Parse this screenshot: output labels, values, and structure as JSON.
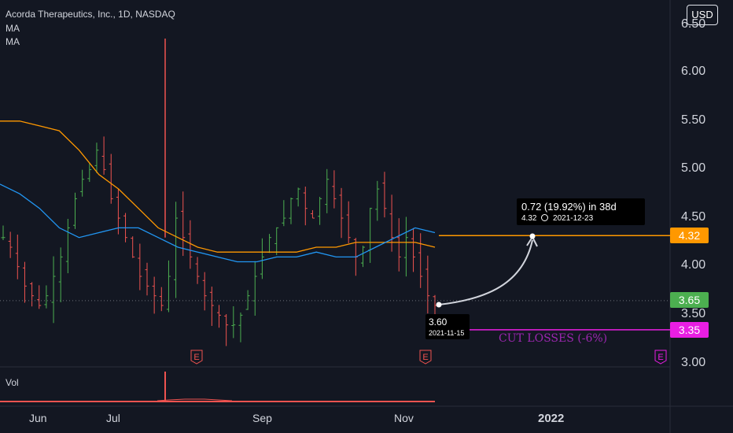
{
  "header": {
    "symbol_title": "Acorda Therapeutics, Inc., 1D, NASDAQ",
    "indicator_1": "MA",
    "indicator_2": "MA",
    "currency_button": "USD"
  },
  "volume_label": "Vol",
  "price_axis": {
    "ticks": [
      "6.50",
      "6.00",
      "5.50",
      "5.00",
      "4.50",
      "4.00",
      "3.50",
      "3.00"
    ]
  },
  "price_tags": {
    "target": "4.32",
    "current": "3.65",
    "stop": "3.35"
  },
  "colors": {
    "background": "#131722",
    "target": "#ff9800",
    "current": "#4caf50",
    "stop": "#e91ee3",
    "ma_fast": "#2196f3",
    "ma_slow": "#ff9800",
    "up_candle": "#4caf50",
    "down_candle": "#ef5350"
  },
  "time_axis": {
    "ticks": [
      "Jun",
      "Jul",
      "Sep",
      "Nov",
      "2022"
    ]
  },
  "annotations": {
    "projection_main": "0.72 (19.92%) in 38d",
    "projection_price": "4.32",
    "projection_date": "2021-12-23",
    "entry_price": "3.60",
    "entry_date": "2021-11-15",
    "cut_losses": "CUT LOSSES (-6%)"
  },
  "earnings_markers": [
    "E",
    "E",
    "E"
  ],
  "chart_data": {
    "type": "candlestick",
    "title": "Acorda Therapeutics, Inc., 1D, NASDAQ",
    "ylim": [
      3.0,
      6.5
    ],
    "levels": {
      "target": 4.32,
      "current": 3.65,
      "stop_loss": 3.35
    },
    "approx_closes": [
      4.3,
      4.2,
      4.0,
      3.8,
      3.7,
      3.6,
      3.7,
      3.9,
      4.1,
      4.4,
      4.7,
      4.9,
      5.0,
      5.2,
      5.0,
      4.7,
      4.5,
      4.3,
      4.1,
      3.9,
      3.8,
      3.7,
      3.6,
      3.9,
      4.5,
      4.3,
      4.1,
      3.9,
      3.7,
      3.6,
      3.5,
      3.4,
      3.4,
      3.5,
      3.7,
      3.9,
      4.1,
      4.3,
      4.4,
      4.5,
      4.7,
      4.8,
      4.6,
      4.5,
      4.7,
      4.9,
      4.7,
      4.5,
      4.3,
      4.1,
      4.2,
      4.6,
      4.8,
      4.6,
      4.3,
      4.1,
      4.3,
      4.1,
      3.9,
      3.7,
      3.6
    ],
    "ma_fast_approx": [
      4.85,
      4.75,
      4.6,
      4.4,
      4.3,
      4.35,
      4.4,
      4.4,
      4.3,
      4.2,
      4.15,
      4.1,
      4.05,
      4.05,
      4.1,
      4.1,
      4.15,
      4.1,
      4.1,
      4.2,
      4.3,
      4.4,
      4.35
    ],
    "ma_slow_approx": [
      5.5,
      5.5,
      5.45,
      5.4,
      5.2,
      4.95,
      4.8,
      4.6,
      4.4,
      4.3,
      4.2,
      4.15,
      4.15,
      4.15,
      4.15,
      4.15,
      4.2,
      4.2,
      4.25,
      4.25,
      4.25,
      4.25,
      4.2
    ]
  }
}
